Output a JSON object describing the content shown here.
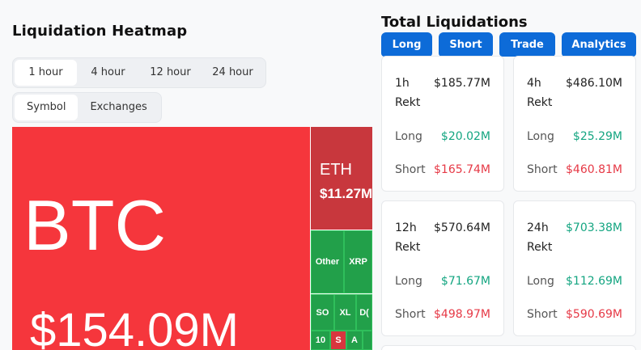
{
  "heatmap": {
    "title": "Liquidation Heatmap",
    "time_options": [
      "1 hour",
      "4 hour",
      "12 hour",
      "24 hour"
    ],
    "active_time": "1 hour",
    "view_options": [
      "Symbol",
      "Exchanges"
    ],
    "active_view": "Symbol",
    "tiles": {
      "btc": {
        "symbol": "BTC",
        "value": "$154.09M"
      },
      "eth": {
        "symbol": "ETH",
        "value": "$11.27M"
      },
      "other": {
        "symbol": "Other"
      },
      "xrp": {
        "symbol": "XRP"
      },
      "sol": {
        "symbol": "SO"
      },
      "xlm": {
        "symbol": "XL"
      },
      "doge": {
        "symbol": "D("
      },
      "t10": {
        "symbol": "10"
      },
      "s": {
        "symbol": "S"
      },
      "a": {
        "symbol": "A"
      }
    },
    "colors": {
      "loss_red": "#f5363c",
      "eth_red": "#c8373d",
      "gain_green": "#22a04a"
    }
  },
  "totals": {
    "title": "Total Liquidations",
    "tabs": [
      "Long",
      "Short",
      "Trade",
      "Analytics"
    ],
    "rekt_label": "Rekt",
    "long_label": "Long",
    "short_label": "Short",
    "cards": [
      {
        "period": "1h",
        "total": "$185.77M",
        "long": "$20.02M",
        "short": "$165.74M"
      },
      {
        "period": "4h",
        "total": "$486.10M",
        "long": "$25.29M",
        "short": "$460.81M"
      },
      {
        "period": "12h",
        "total": "$570.64M",
        "long": "$71.67M",
        "short": "$498.97M"
      },
      {
        "period": "24h",
        "total": "$703.38M",
        "long": "$112.69M",
        "short": "$590.69M"
      }
    ],
    "colors": {
      "tab_blue": "#0d6bd8",
      "long_green": "#14a581",
      "short_red": "#e63946"
    }
  }
}
